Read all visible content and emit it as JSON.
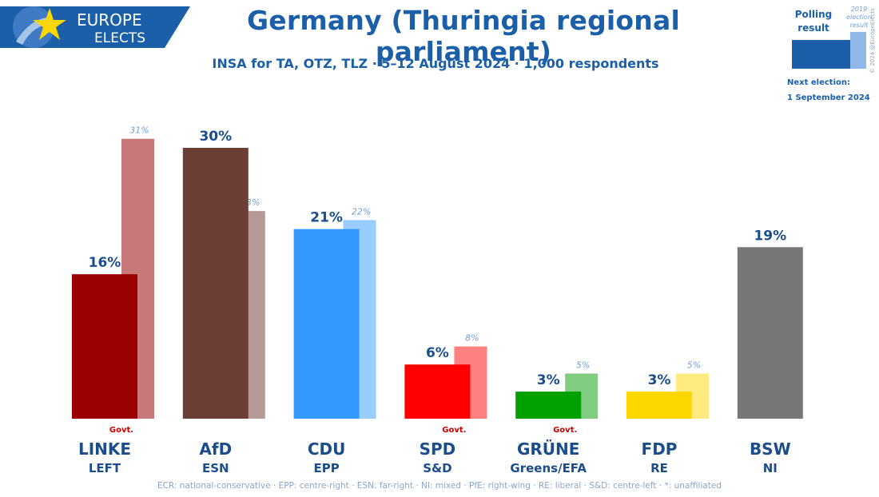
{
  "header": {
    "logo_line1": "EUROPE",
    "logo_line2": "ELECTS",
    "title": "Germany (Thuringia regional parliament)",
    "subtitle": "INSA for TA, OTZ, TLZ · 5–12 August 2024 · 1,000 respondents"
  },
  "legend": {
    "polling_label_line1": "Polling",
    "polling_label_line2": "result",
    "election_label_line1": "2019",
    "election_label_line2": "election",
    "election_label_line3": "result",
    "copyright": "© 2024 @EuropeElects",
    "next_election_line1": "Next election:",
    "next_election_line2": "1 September 2024",
    "polling_color": "#1b5fa8",
    "election_color": "#8fb8e8"
  },
  "footnote": "ECR: national-conservative · EPP: centre-right · ESN: far-right · NI: mixed · PfE: right-wing · RE: liberal · S&D: centre-left · *: unaffiliated",
  "chart_data": {
    "type": "bar",
    "categories": [
      "LINKE",
      "AfD",
      "CDU",
      "SPD",
      "GRÜNE",
      "FDP",
      "BSW"
    ],
    "groups": [
      "LEFT",
      "ESN",
      "EPP",
      "S&D",
      "Greens/EFA",
      "RE",
      "NI"
    ],
    "series": [
      {
        "name": "Polling result",
        "values": [
          16,
          30,
          21,
          6,
          3,
          3,
          19
        ],
        "labels": [
          "16%",
          "30%",
          "21%",
          "6%",
          "3%",
          "3%",
          "19%"
        ]
      },
      {
        "name": "2019 election result",
        "values": [
          31,
          23,
          22,
          8,
          5,
          5,
          null
        ],
        "labels": [
          "31%",
          "23%",
          "22%",
          "8%",
          "5%",
          "5%",
          ""
        ]
      }
    ],
    "govt_label": "Govt.",
    "govt": [
      true,
      false,
      false,
      true,
      true,
      false,
      false
    ],
    "colors": [
      "#990000",
      "#6b3f36",
      "#3399ff",
      "#ff0000",
      "#00a000",
      "#ffd700",
      "#777777"
    ],
    "colors_2019": [
      "#c87878",
      "#b49a94",
      "#99ccff",
      "#ff8080",
      "#80cc80",
      "#ffeb80",
      ""
    ],
    "ylim": [
      0,
      32
    ]
  }
}
